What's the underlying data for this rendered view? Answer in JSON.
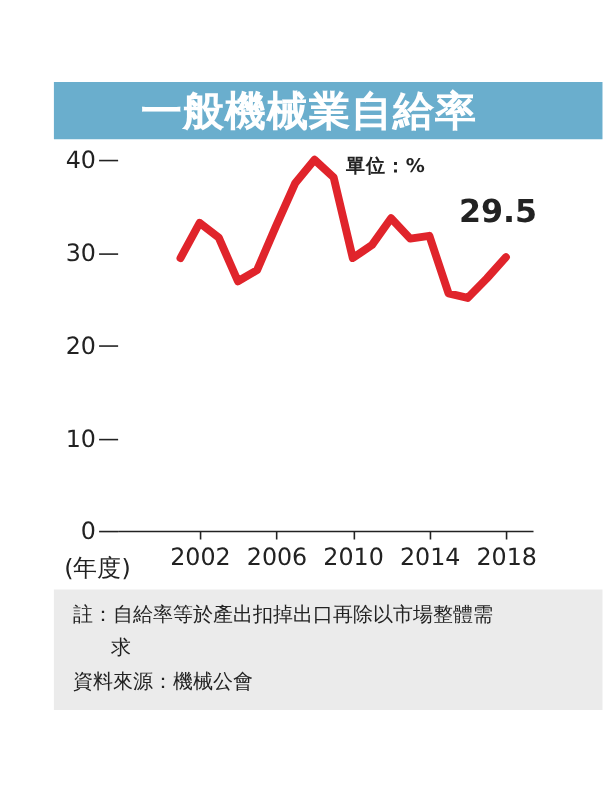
{
  "chart_data": {
    "type": "line",
    "title": "一般機械業自給率",
    "xlabel": "(年度)",
    "x": [
      2001,
      2002,
      2003,
      2004,
      2005,
      2006,
      2007,
      2008,
      2009,
      2010,
      2011,
      2012,
      2013,
      2014,
      2015,
      2016,
      2017,
      2018
    ],
    "series": [
      {
        "color": "#e0242b",
        "values": [
          29.4,
          33.2,
          31.6,
          26.9,
          28.1,
          32.9,
          37.5,
          40.0,
          38.1,
          29.4,
          30.8,
          33.7,
          31.5,
          31.8,
          25.6,
          25.1,
          27.2,
          29.5
        ]
      }
    ],
    "xlim": [
      1997.7,
      2019.4
    ],
    "xticks": [
      2002,
      2006,
      2010,
      2014,
      2018
    ],
    "ylim": [
      0,
      40
    ],
    "yticks": [
      0,
      10,
      20,
      30,
      40
    ],
    "grid": false,
    "marker": "none",
    "line_style": "solid",
    "annotations": [
      "單位：%",
      {
        "text": "29.5",
        "x": 2018,
        "y": 29.5
      },
      "註：自給率等於產出扣掉出口再除以市場整體需求",
      "資料來源：機械公會"
    ]
  }
}
